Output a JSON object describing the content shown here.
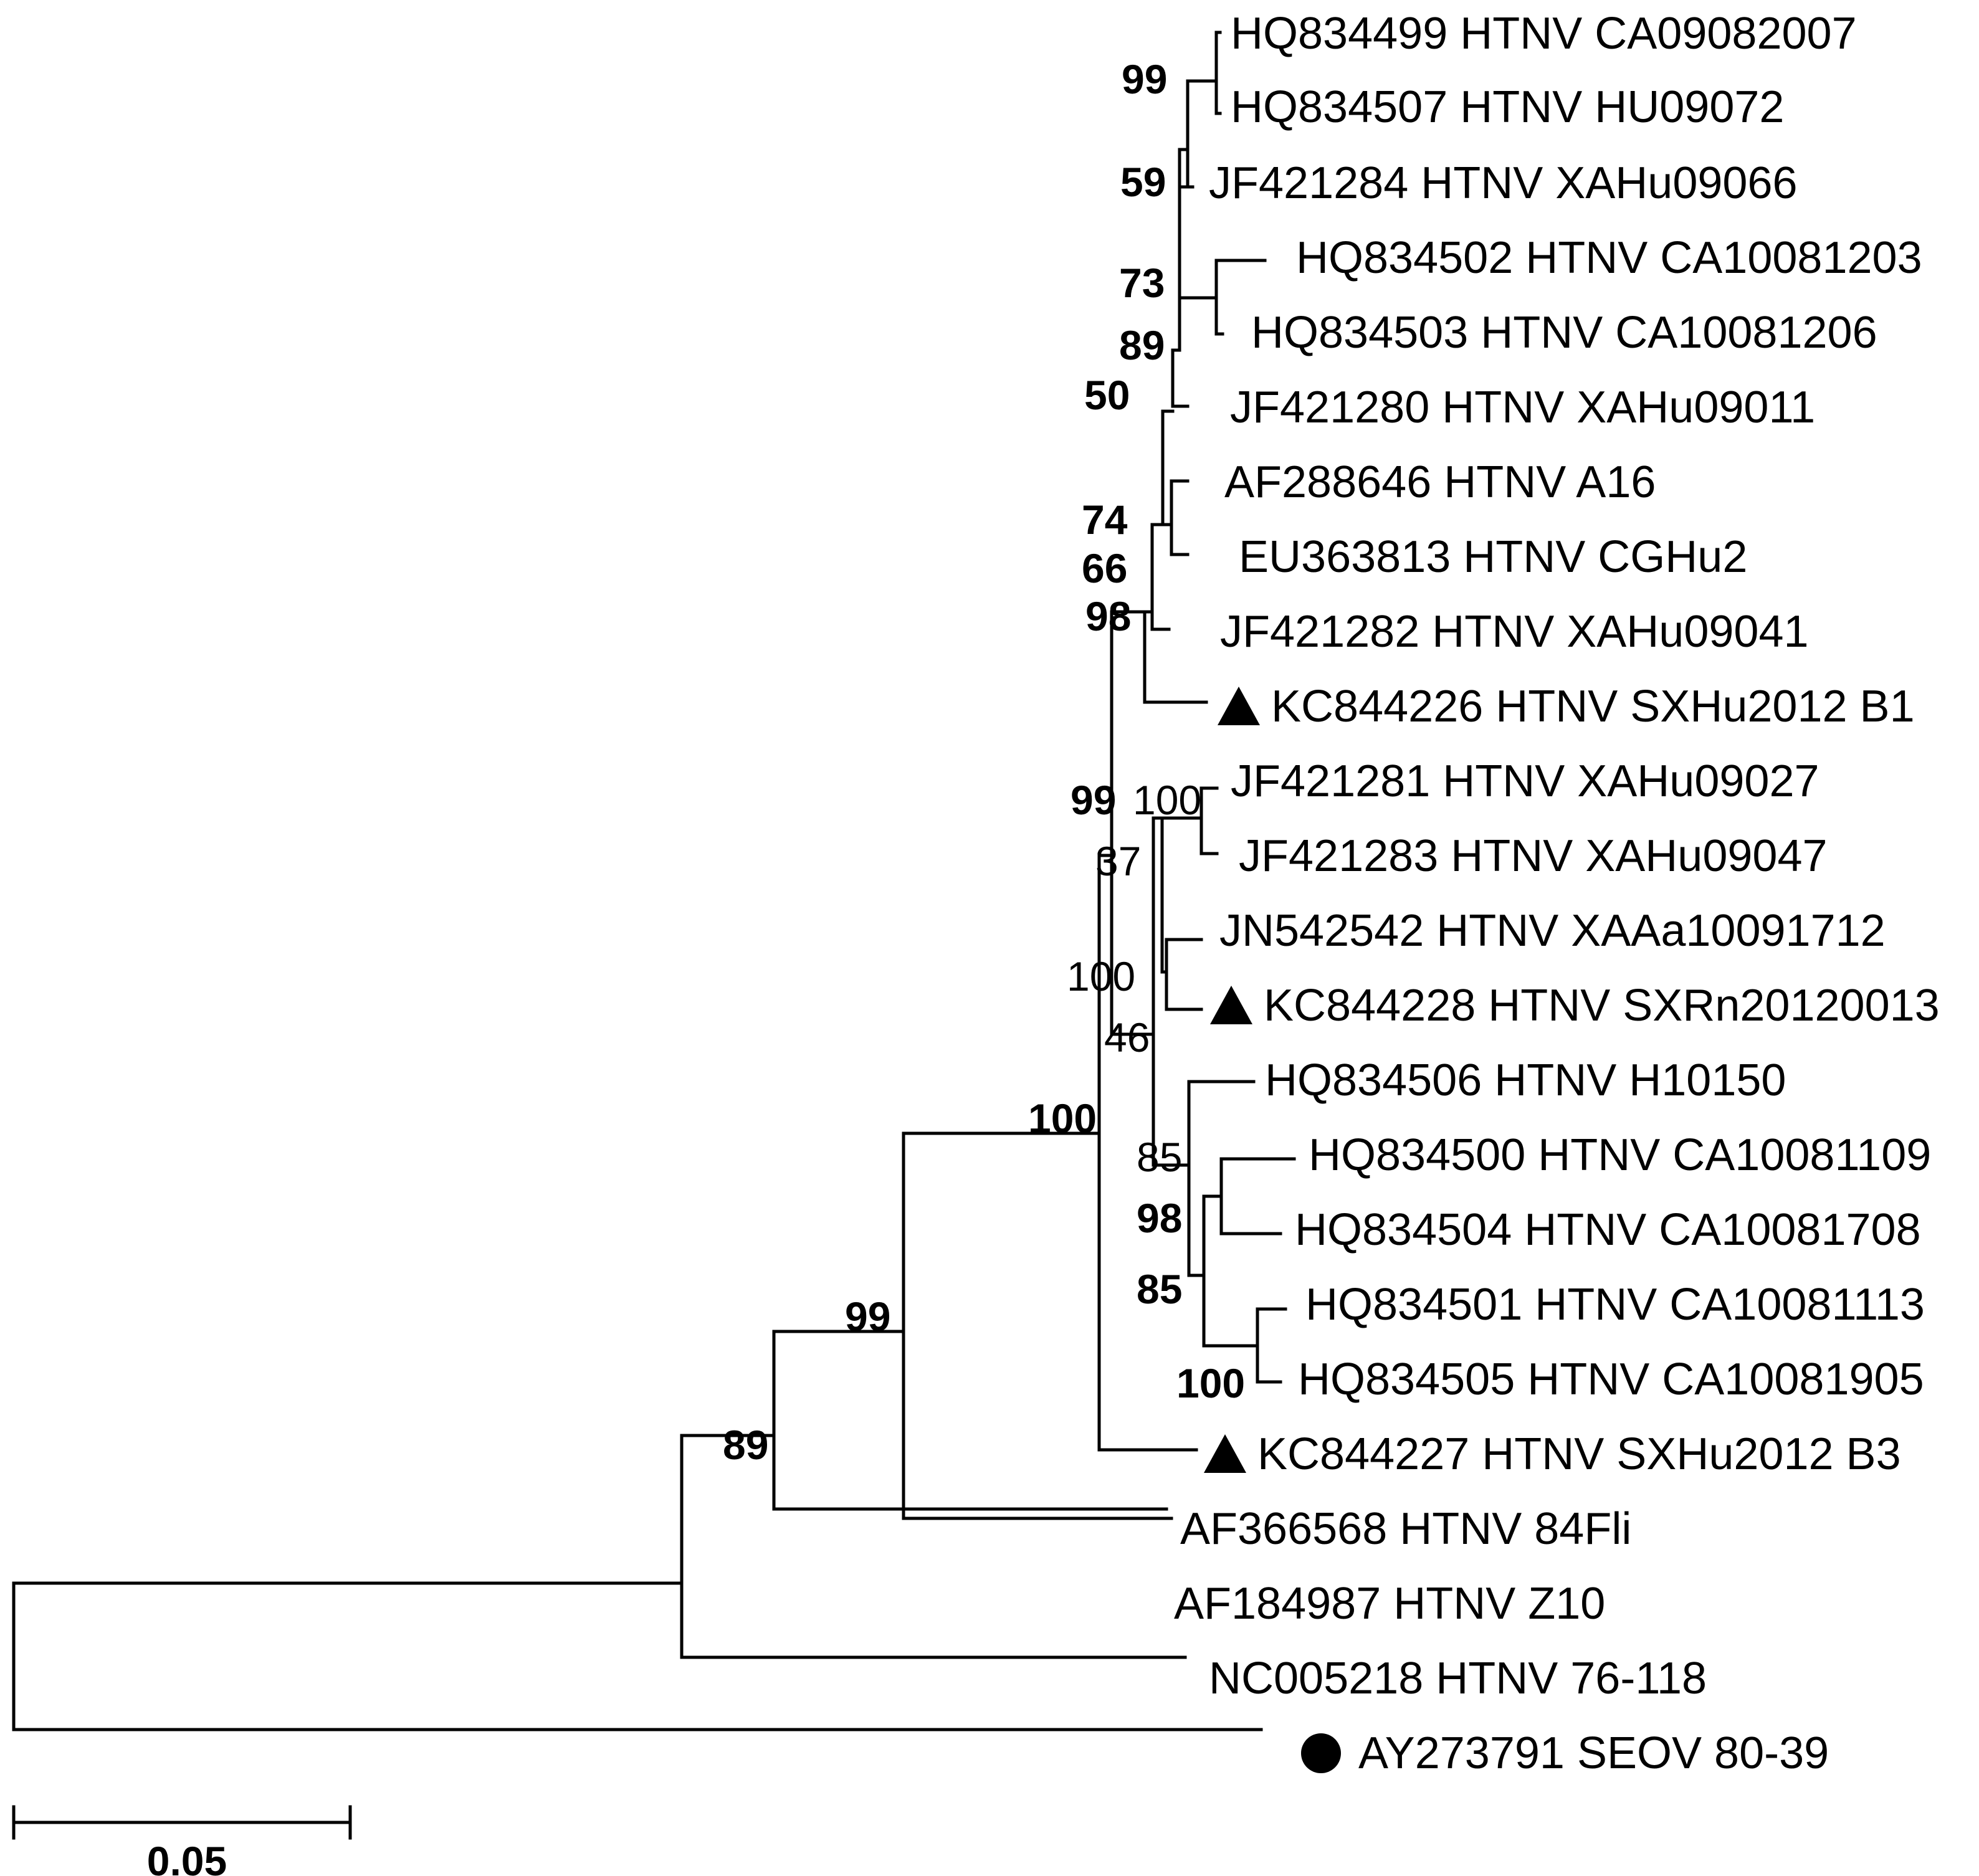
{
  "leaves": [
    {
      "id": "HQ834499",
      "label": "HQ834499 HTNV CA09082007"
    },
    {
      "id": "HQ834507",
      "label": "HQ834507 HTNV HU09072"
    },
    {
      "id": "JF421284",
      "label": "JF421284 HTNV XAHu09066"
    },
    {
      "id": "HQ834502",
      "label": "HQ834502 HTNV CA10081203"
    },
    {
      "id": "HQ834503",
      "label": "HQ834503 HTNV CA10081206"
    },
    {
      "id": "JF421280",
      "label": "JF421280 HTNV XAHu09011"
    },
    {
      "id": "AF288646",
      "label": "AF288646 HTNV  A16"
    },
    {
      "id": "EU363813",
      "label": "EU363813 HTNV CGHu2"
    },
    {
      "id": "JF421282",
      "label": "JF421282 HTNV XAHu09041"
    },
    {
      "id": "KC844226",
      "label": "KC844226 HTNV SXHu2012 B1",
      "marker": "triangle"
    },
    {
      "id": "JF421281",
      "label": "JF421281 HTNV XAHu09027"
    },
    {
      "id": "JF421283",
      "label": "JF421283 HTNV XAHu09047"
    },
    {
      "id": "JN542542",
      "label": "JN542542 HTNV XAAa10091712"
    },
    {
      "id": "KC844228",
      "label": "KC844228 HTNV SXRn20120013",
      "marker": "triangle"
    },
    {
      "id": "HQ834506",
      "label": "HQ834506 HTNV H10150"
    },
    {
      "id": "HQ834500",
      "label": "HQ834500 HTNV CA10081109"
    },
    {
      "id": "HQ834504",
      "label": "HQ834504 HTNV CA10081708"
    },
    {
      "id": "HQ834501",
      "label": "HQ834501 HTNV CA10081113"
    },
    {
      "id": "HQ834505",
      "label": "HQ834505 HTNV CA10081905"
    },
    {
      "id": "KC844227",
      "label": "KC844227 HTNV SXHu2012 B3",
      "marker": "triangle"
    },
    {
      "id": "AF366568",
      "label": "AF366568 HTNV 84Fli"
    },
    {
      "id": "AF184987",
      "label": "AF184987 HTNV Z10"
    },
    {
      "id": "NC005218",
      "label": "NC005218 HTNV 76-118"
    },
    {
      "id": "AY273791",
      "label": "AY273791 SEOV 80-39",
      "marker": "circle"
    }
  ],
  "support_values": [
    {
      "id": "s1",
      "value": "99",
      "bold": true
    },
    {
      "id": "s2",
      "value": "59",
      "bold": true
    },
    {
      "id": "s3",
      "value": "73",
      "bold": true
    },
    {
      "id": "s4",
      "value": "89",
      "bold": true
    },
    {
      "id": "s5",
      "value": "50",
      "bold": true
    },
    {
      "id": "s6",
      "value": "74",
      "bold": true
    },
    {
      "id": "s7",
      "value": "66",
      "bold": true
    },
    {
      "id": "s8",
      "value": "98",
      "bold": true
    },
    {
      "id": "s9",
      "value": "99",
      "bold": true
    },
    {
      "id": "s10",
      "value": "100",
      "bold": false
    },
    {
      "id": "s11",
      "value": "37",
      "bold": false
    },
    {
      "id": "s12",
      "value": "100",
      "bold": false
    },
    {
      "id": "s13",
      "value": "46",
      "bold": false
    },
    {
      "id": "s14",
      "value": "100",
      "bold": true
    },
    {
      "id": "s15",
      "value": "85",
      "bold": false
    },
    {
      "id": "s16",
      "value": "98",
      "bold": true
    },
    {
      "id": "s17",
      "value": "85",
      "bold": true
    },
    {
      "id": "s18",
      "value": "100",
      "bold": true
    },
    {
      "id": "s19",
      "value": "99",
      "bold": true
    },
    {
      "id": "s20",
      "value": "89",
      "bold": true
    }
  ],
  "scale_bar": {
    "label": "0.05",
    "value": 0.05
  }
}
